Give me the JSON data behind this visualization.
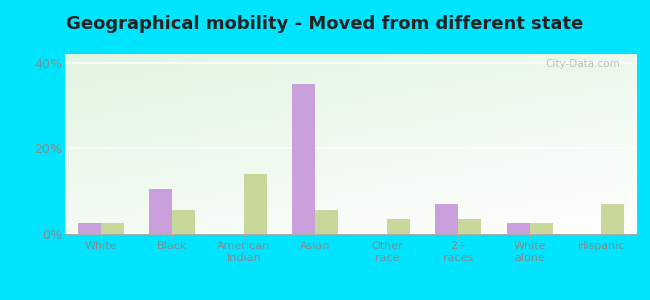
{
  "title": "Geographical mobility - Moved from different state",
  "categories": [
    "White",
    "Black",
    "American\nIndian",
    "Asian",
    "Other\nrace",
    "2+\nraces",
    "White\nalone",
    "Hispanic"
  ],
  "barboursville": [
    2.5,
    10.5,
    0.0,
    35.0,
    0.0,
    7.0,
    2.5,
    0.0
  ],
  "west_virginia": [
    2.5,
    5.5,
    14.0,
    5.5,
    3.5,
    3.5,
    2.5,
    7.0
  ],
  "barboursville_color": "#c9a0dc",
  "west_virginia_color": "#c8d89a",
  "ylim": [
    0,
    42
  ],
  "yticks": [
    0,
    20,
    40
  ],
  "ytick_labels": [
    "0%",
    "20%",
    "40%"
  ],
  "outer_background": "#00e5ff",
  "title_fontsize": 13,
  "bar_width": 0.32
}
